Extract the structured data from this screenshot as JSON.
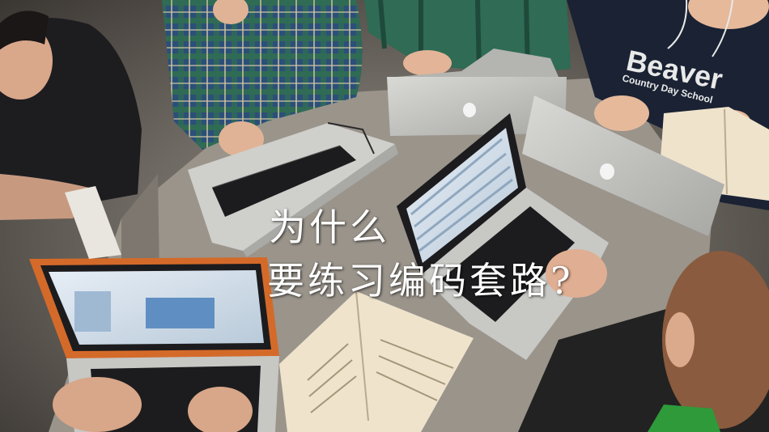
{
  "headline": {
    "line1": "为什么",
    "line2": "要练习编码套路?"
  },
  "sweatshirt": {
    "text1": "Beaver",
    "text2": "Country Day School"
  },
  "colors": {
    "table": "#9a948b",
    "laptop_silver": "#c9c9c6",
    "laptop_screen": "#1c1c1e",
    "plaid_green": "#2f6b55",
    "plaid_blue": "#2c4f7a",
    "headline_text": "#ffffff"
  }
}
